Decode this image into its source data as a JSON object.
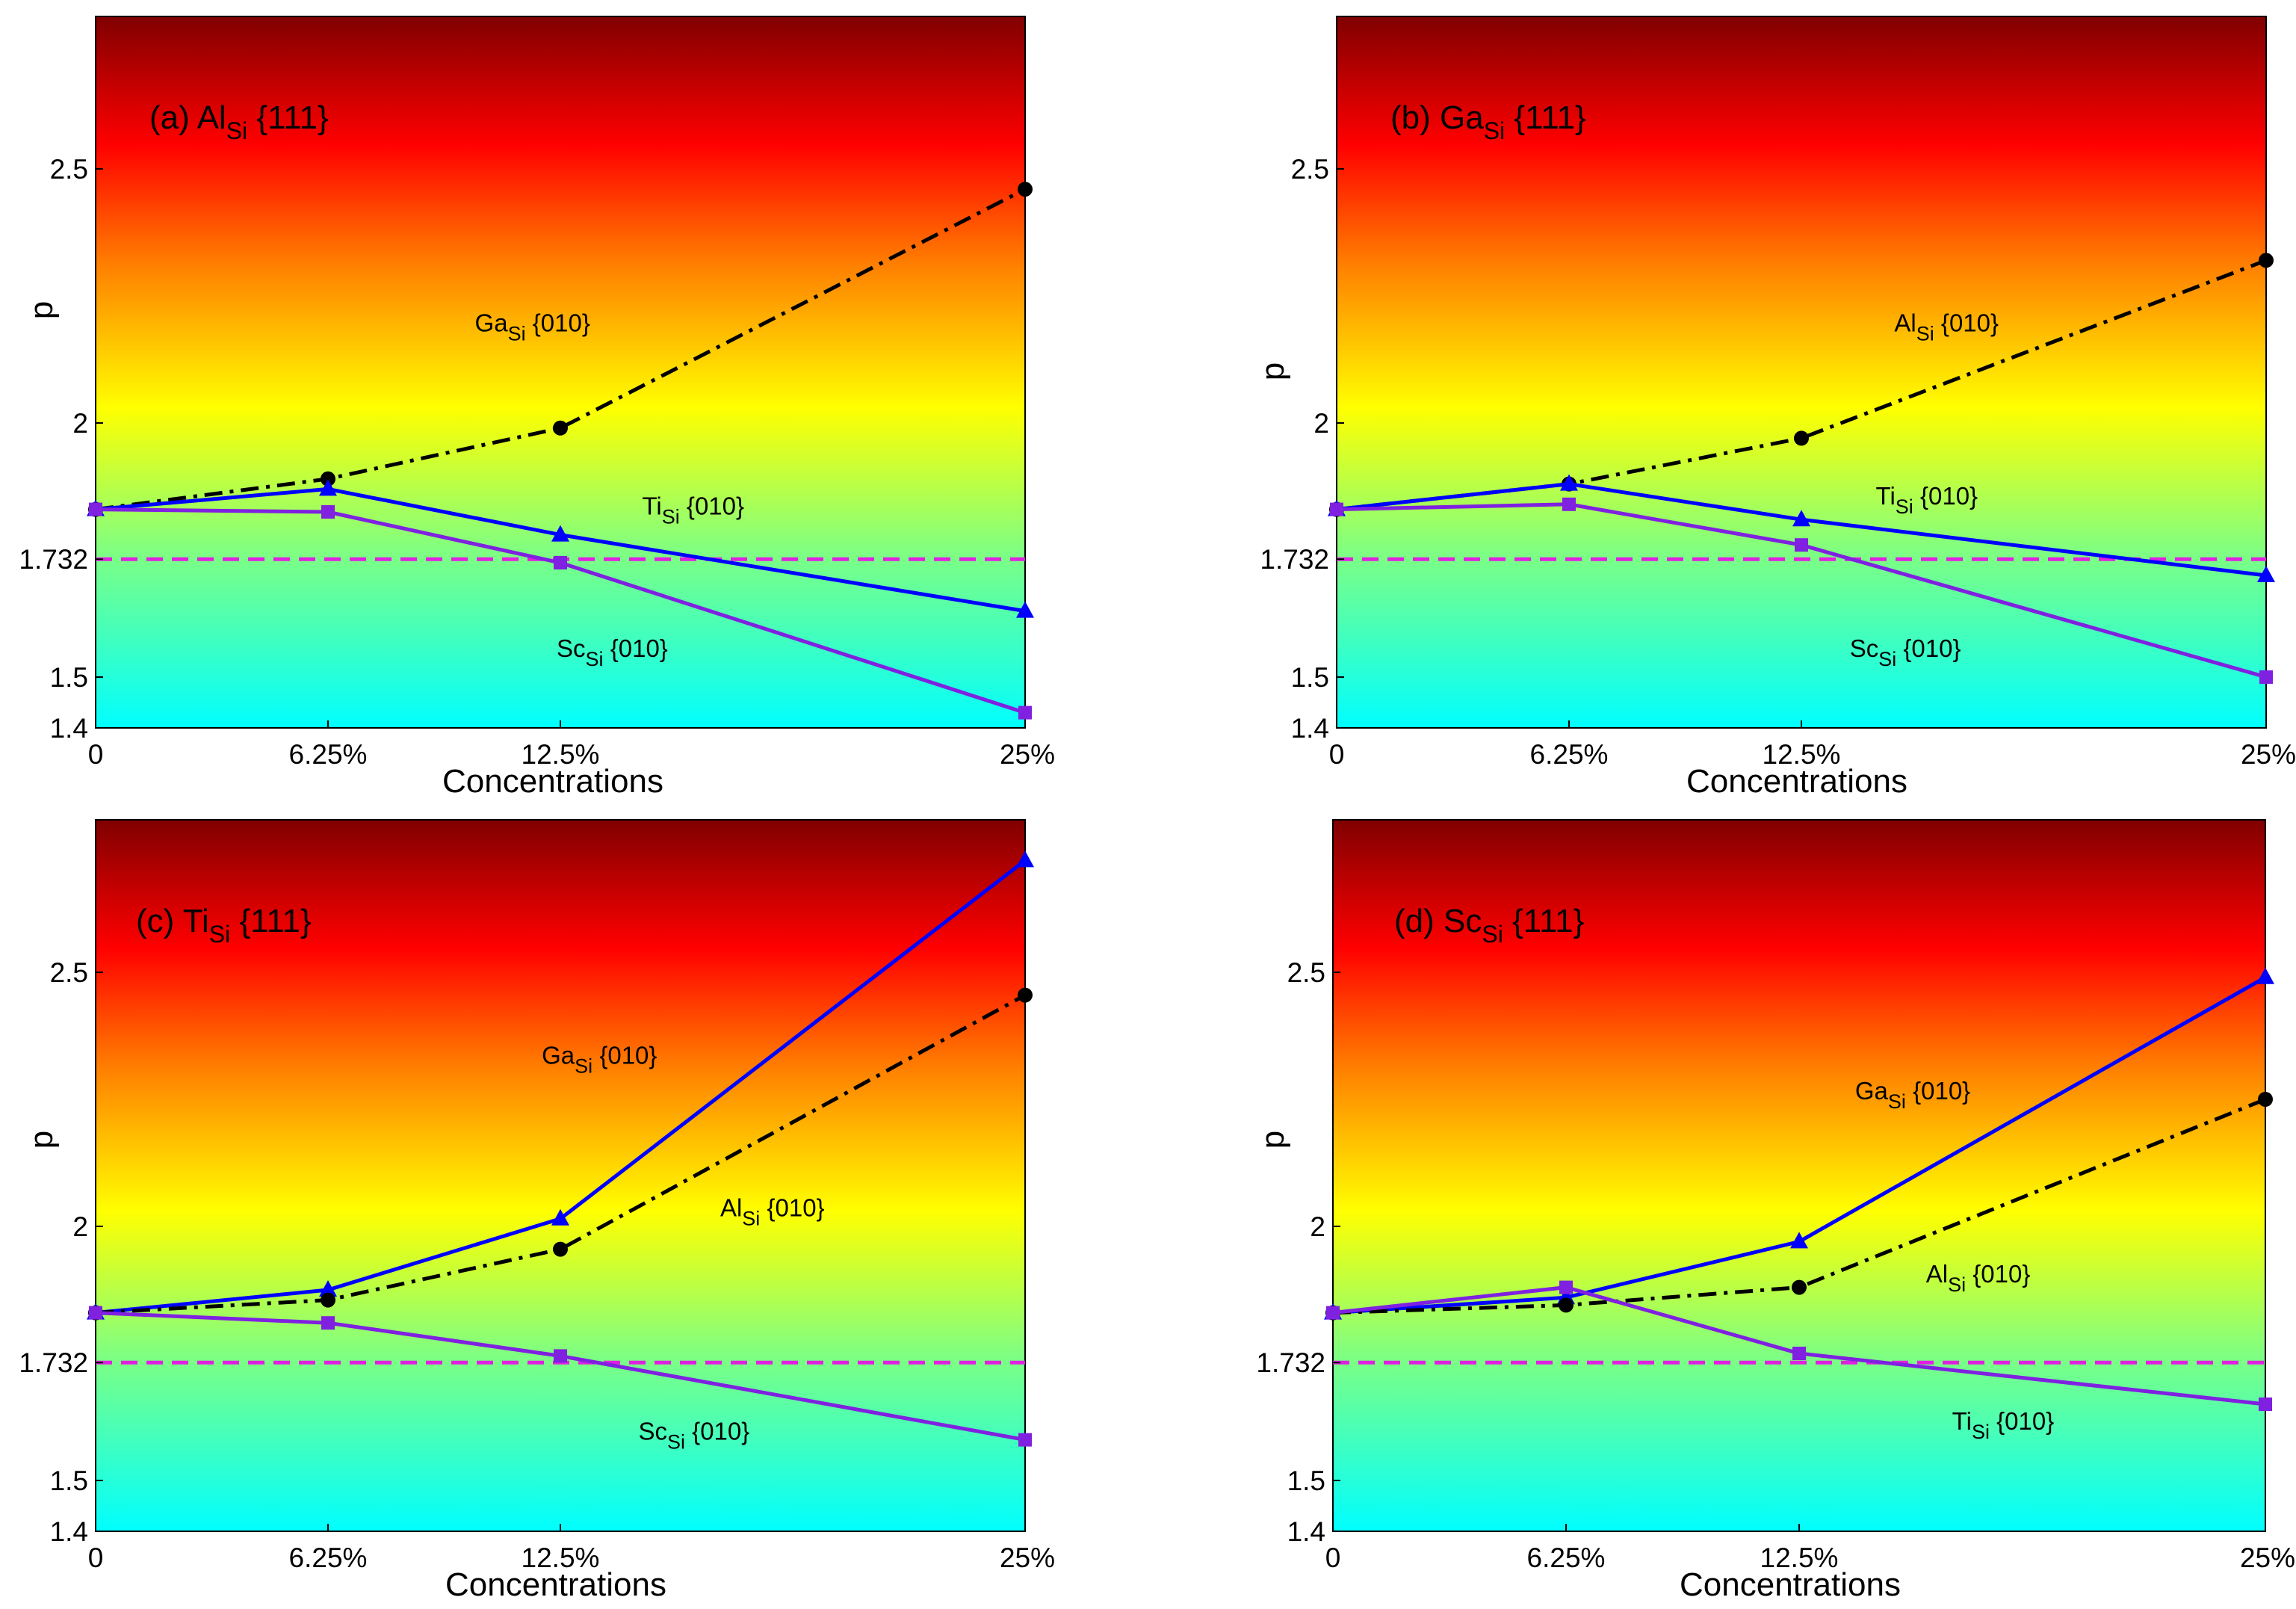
{
  "figure": {
    "description_colors": {
      "gradient": [
        "#00ffff",
        "#80ff80",
        "#ffff00",
        "#ff8000",
        "#ff0000",
        "#800000"
      ],
      "threshold_line": "#e020e0",
      "ga_al_series": "#000000",
      "ti_series": "#0000ff",
      "sc_series": "#8020e0"
    }
  },
  "chart_data": [
    {
      "type": "line",
      "panel": "a",
      "title": {
        "prefix": "(a) Al",
        "sub": "Si",
        "suffix": " {111}"
      },
      "xlabel": "Concentrations",
      "ylabel": "p",
      "x": [
        0,
        6.25,
        12.5,
        25
      ],
      "xtick_labels": [
        "0",
        "6.25%",
        "12.5%",
        "25%"
      ],
      "xlim": [
        0,
        25
      ],
      "ylim": [
        1.4,
        2.8
      ],
      "yticks": [
        1.4,
        1.5,
        1.732,
        2,
        2.5
      ],
      "ytick_labels": [
        "1.4",
        "1.5",
        "1.732",
        "2",
        "2.5"
      ],
      "threshold": 1.732,
      "series": [
        {
          "name": "Ga_Si {010}",
          "style": "dashdot",
          "marker": "circle",
          "color": "#000000",
          "values": [
            1.83,
            1.89,
            1.99,
            2.46
          ]
        },
        {
          "name": "Ti_Si {010}",
          "style": "solid",
          "marker": "triangle",
          "color": "#0000ff",
          "values": [
            1.83,
            1.87,
            1.78,
            1.63
          ]
        },
        {
          "name": "Sc_Si {010}",
          "style": "solid",
          "marker": "square",
          "color": "#8020e0",
          "values": [
            1.83,
            1.825,
            1.725,
            1.43
          ]
        }
      ],
      "annotations": [
        {
          "main": "Ga",
          "sub": "Si",
          "rest": " {010}",
          "at": [
            10.2,
            2.18
          ]
        },
        {
          "main": "Ti",
          "sub": "Si",
          "rest": " {010}",
          "at": [
            14.7,
            1.82
          ]
        },
        {
          "main": "Sc",
          "sub": "Si",
          "rest": " {010}",
          "at": [
            12.4,
            1.54
          ]
        }
      ]
    },
    {
      "type": "line",
      "panel": "b",
      "title": {
        "prefix": "(b) Ga",
        "sub": "Si",
        "suffix": " {111}"
      },
      "xlabel": "Concentrations",
      "ylabel": "p",
      "x": [
        0,
        6.25,
        12.5,
        25
      ],
      "xtick_labels": [
        "0",
        "6.25%",
        "12.5%",
        "25%"
      ],
      "xlim": [
        0,
        25
      ],
      "ylim": [
        1.4,
        2.8
      ],
      "yticks": [
        1.4,
        1.5,
        1.732,
        2,
        2.5
      ],
      "ytick_labels": [
        "1.4",
        "1.5",
        "1.732",
        "2",
        "2.5"
      ],
      "threshold": 1.732,
      "series": [
        {
          "name": "Al_Si {010}",
          "style": "dashdot",
          "marker": "circle",
          "color": "#000000",
          "values": [
            1.83,
            1.88,
            1.97,
            2.32
          ]
        },
        {
          "name": "Ti_Si {010}",
          "style": "solid",
          "marker": "triangle",
          "color": "#0000ff",
          "values": [
            1.83,
            1.88,
            1.81,
            1.7
          ]
        },
        {
          "name": "Sc_Si {010}",
          "style": "solid",
          "marker": "square",
          "color": "#8020e0",
          "values": [
            1.83,
            1.84,
            1.76,
            1.5
          ]
        }
      ],
      "annotations": [
        {
          "main": "Al",
          "sub": "Si",
          "rest": " {010}",
          "at": [
            15.0,
            2.18
          ]
        },
        {
          "main": "Ti",
          "sub": "Si",
          "rest": " {010}",
          "at": [
            14.5,
            1.84
          ]
        },
        {
          "main": "Sc",
          "sub": "Si",
          "rest": " {010}",
          "at": [
            13.8,
            1.54
          ]
        }
      ]
    },
    {
      "type": "line",
      "panel": "c",
      "title": {
        "prefix": "(c) Ti",
        "sub": "Si",
        "suffix": " {111}"
      },
      "xlabel": "Concentrations",
      "ylabel": "p",
      "x": [
        0,
        6.25,
        12.5,
        25
      ],
      "xtick_labels": [
        "0",
        "6.25%",
        "12.5%",
        "25%"
      ],
      "xlim": [
        0,
        25
      ],
      "ylim": [
        1.4,
        2.8
      ],
      "yticks": [
        1.4,
        1.5,
        1.732,
        2,
        2.5
      ],
      "ytick_labels": [
        "1.4",
        "1.5",
        "1.732",
        "2",
        "2.5"
      ],
      "threshold": 1.732,
      "series": [
        {
          "name": "Ga_Si {010}",
          "style": "solid",
          "marker": "triangle",
          "color": "#0000ff",
          "values": [
            1.83,
            1.875,
            2.015,
            2.72
          ]
        },
        {
          "name": "Al_Si {010}",
          "style": "dashdot",
          "marker": "circle",
          "color": "#000000",
          "values": [
            1.83,
            1.855,
            1.955,
            2.455
          ]
        },
        {
          "name": "Sc_Si {010}",
          "style": "solid",
          "marker": "square",
          "color": "#8020e0",
          "values": [
            1.83,
            1.81,
            1.745,
            1.58
          ]
        }
      ],
      "annotations": [
        {
          "main": "Ga",
          "sub": "Si",
          "rest": " {010}",
          "at": [
            12.0,
            2.32
          ]
        },
        {
          "main": "Al",
          "sub": "Si",
          "rest": " {010}",
          "at": [
            16.8,
            2.02
          ]
        },
        {
          "main": "Sc",
          "sub": "Si",
          "rest": " {010}",
          "at": [
            14.6,
            1.58
          ]
        }
      ]
    },
    {
      "type": "line",
      "panel": "d",
      "title": {
        "prefix": "(d) Sc",
        "sub": "Si",
        "suffix": " {111}"
      },
      "xlabel": "Concentrations",
      "ylabel": "p",
      "x": [
        0,
        6.25,
        12.5,
        25
      ],
      "xtick_labels": [
        "0",
        "6.25%",
        "12.5%",
        "25%"
      ],
      "xlim": [
        0,
        25
      ],
      "ylim": [
        1.4,
        2.8
      ],
      "yticks": [
        1.4,
        1.5,
        1.732,
        2,
        2.5
      ],
      "ytick_labels": [
        "1.4",
        "1.5",
        "1.732",
        "2",
        "2.5"
      ],
      "threshold": 1.732,
      "series": [
        {
          "name": "Ga_Si {010}",
          "style": "solid",
          "marker": "triangle",
          "color": "#0000ff",
          "values": [
            1.83,
            1.86,
            1.97,
            2.49
          ]
        },
        {
          "name": "Al_Si {010}",
          "style": "dashdot",
          "marker": "circle",
          "color": "#000000",
          "values": [
            1.83,
            1.845,
            1.88,
            2.25
          ]
        },
        {
          "name": "Ti_Si {010}",
          "style": "solid",
          "marker": "square",
          "color": "#8020e0",
          "values": [
            1.83,
            1.88,
            1.75,
            1.65
          ]
        }
      ],
      "annotations": [
        {
          "main": "Ga",
          "sub": "Si",
          "rest": " {010}",
          "at": [
            14.0,
            2.25
          ]
        },
        {
          "main": "Al",
          "sub": "Si",
          "rest": " {010}",
          "at": [
            15.9,
            1.89
          ]
        },
        {
          "main": "Ti",
          "sub": "Si",
          "rest": " {010}",
          "at": [
            16.6,
            1.6
          ]
        }
      ]
    }
  ]
}
